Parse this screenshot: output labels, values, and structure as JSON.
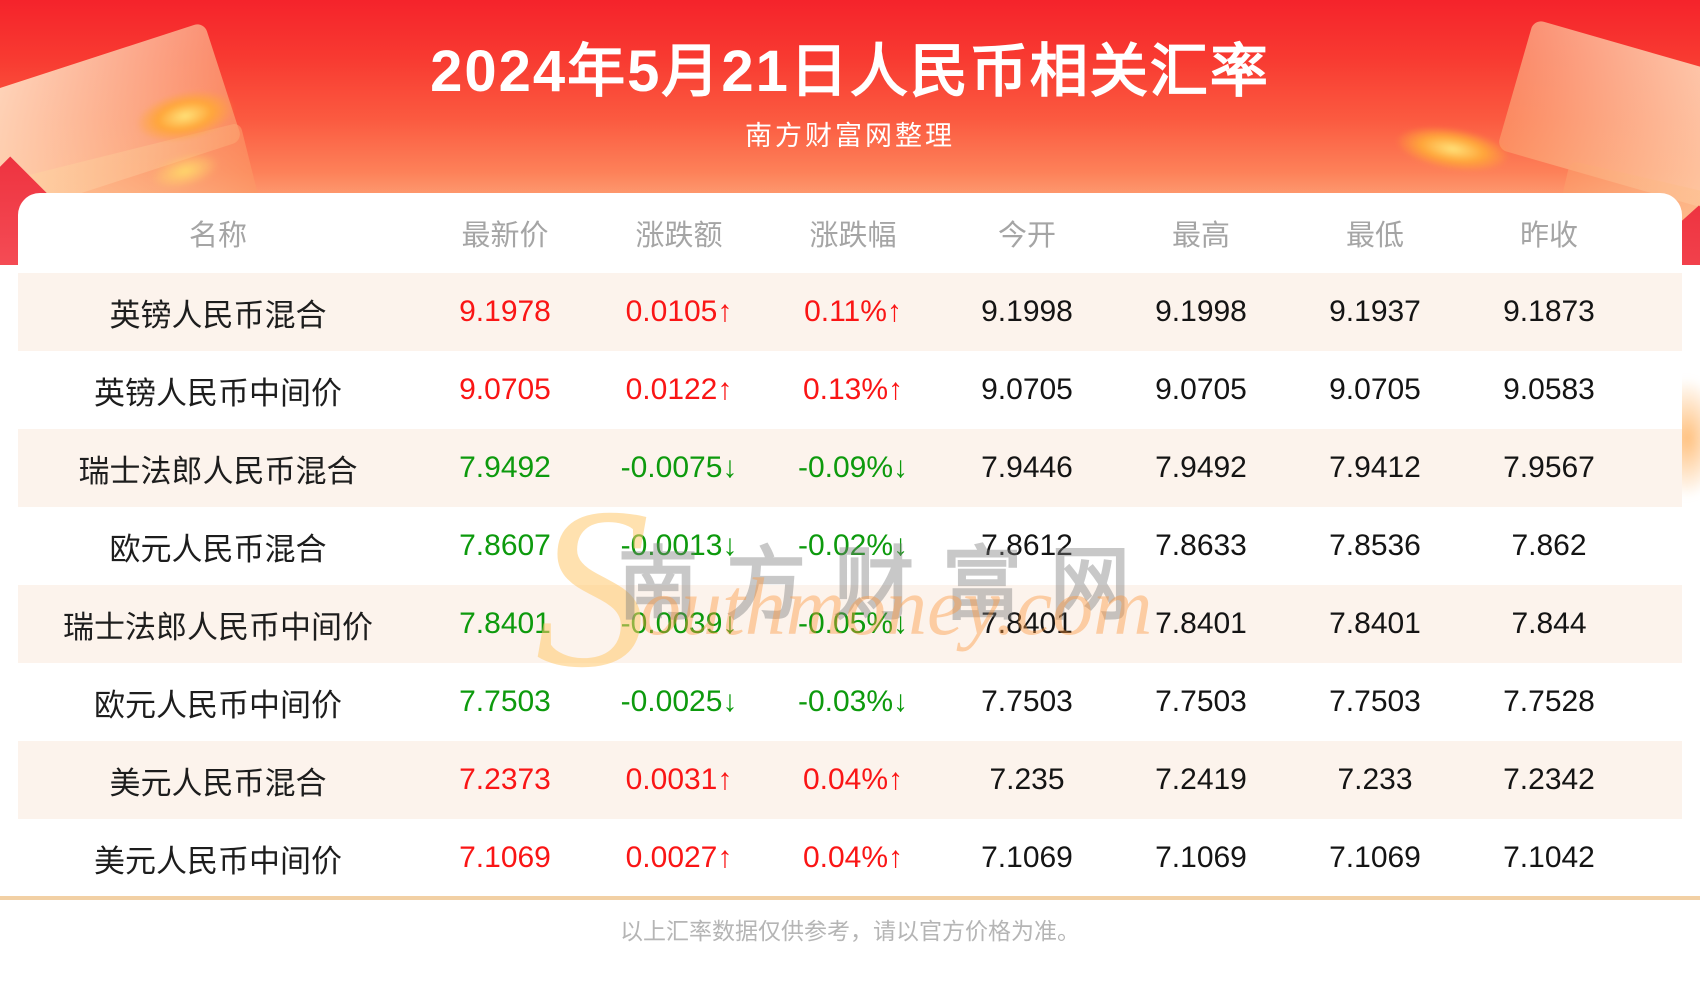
{
  "banner": {
    "title": "2024年5月21日人民币相关汇率",
    "subtitle": "南方财富网整理"
  },
  "table": {
    "columns": [
      "名称",
      "最新价",
      "涨跌额",
      "涨跌幅",
      "今开",
      "最高",
      "最低",
      "昨收"
    ],
    "rows": [
      {
        "name": "英镑人民币混合",
        "latest": "9.1978",
        "change": "0.0105↑",
        "change_pct": "0.11%↑",
        "open": "9.1998",
        "high": "9.1998",
        "low": "9.1937",
        "prev_close": "9.1873",
        "trend": "up"
      },
      {
        "name": "英镑人民币中间价",
        "latest": "9.0705",
        "change": "0.0122↑",
        "change_pct": "0.13%↑",
        "open": "9.0705",
        "high": "9.0705",
        "low": "9.0705",
        "prev_close": "9.0583",
        "trend": "up"
      },
      {
        "name": "瑞士法郎人民币混合",
        "latest": "7.9492",
        "change": "-0.0075↓",
        "change_pct": "-0.09%↓",
        "open": "7.9446",
        "high": "7.9492",
        "low": "7.9412",
        "prev_close": "7.9567",
        "trend": "down"
      },
      {
        "name": "欧元人民币混合",
        "latest": "7.8607",
        "change": "-0.0013↓",
        "change_pct": "-0.02%↓",
        "open": "7.8612",
        "high": "7.8633",
        "low": "7.8536",
        "prev_close": "7.862",
        "trend": "down"
      },
      {
        "name": "瑞士法郎人民币中间价",
        "latest": "7.8401",
        "change": "-0.0039↓",
        "change_pct": "-0.05%↓",
        "open": "7.8401",
        "high": "7.8401",
        "low": "7.8401",
        "prev_close": "7.844",
        "trend": "down"
      },
      {
        "name": "欧元人民币中间价",
        "latest": "7.7503",
        "change": "-0.0025↓",
        "change_pct": "-0.03%↓",
        "open": "7.7503",
        "high": "7.7503",
        "low": "7.7503",
        "prev_close": "7.7528",
        "trend": "down"
      },
      {
        "name": "美元人民币混合",
        "latest": "7.2373",
        "change": "0.0031↑",
        "change_pct": "0.04%↑",
        "open": "7.235",
        "high": "7.2419",
        "low": "7.233",
        "prev_close": "7.2342",
        "trend": "up"
      },
      {
        "name": "美元人民币中间价",
        "latest": "7.1069",
        "change": "0.0027↑",
        "change_pct": "0.04%↑",
        "open": "7.1069",
        "high": "7.1069",
        "low": "7.1069",
        "prev_close": "7.1042",
        "trend": "up"
      }
    ]
  },
  "watermark": {
    "en_initial": "S",
    "cn": "南方财富网",
    "en_rest": "outhmoney.com"
  },
  "footer": {
    "disclaimer": "以上汇率数据仅供参考，请以官方价格为准。"
  },
  "colors": {
    "up": "#fa1515",
    "down": "#0d9a0d",
    "banner_red": "#f5232b",
    "row_alt": "#fcf3ec",
    "divider": "#f2d0a4",
    "header_text": "#a5a5a5"
  },
  "chart_data": {
    "type": "table",
    "title": "2024年5月21日人民币相关汇率",
    "source": "南方财富网整理",
    "columns": [
      "名称",
      "最新价",
      "涨跌额",
      "涨跌幅",
      "今开",
      "最高",
      "最低",
      "昨收"
    ],
    "rows": [
      [
        "英镑人民币混合",
        9.1978,
        0.0105,
        "0.11%",
        9.1998,
        9.1998,
        9.1937,
        9.1873
      ],
      [
        "英镑人民币中间价",
        9.0705,
        0.0122,
        "0.13%",
        9.0705,
        9.0705,
        9.0705,
        9.0583
      ],
      [
        "瑞士法郎人民币混合",
        7.9492,
        -0.0075,
        "-0.09%",
        7.9446,
        7.9492,
        7.9412,
        7.9567
      ],
      [
        "欧元人民币混合",
        7.8607,
        -0.0013,
        "-0.02%",
        7.8612,
        7.8633,
        7.8536,
        7.862
      ],
      [
        "瑞士法郎人民币中间价",
        7.8401,
        -0.0039,
        "-0.05%",
        7.8401,
        7.8401,
        7.8401,
        7.844
      ],
      [
        "欧元人民币中间价",
        7.7503,
        -0.0025,
        "-0.03%",
        7.7503,
        7.7503,
        7.7503,
        7.7528
      ],
      [
        "美元人民币混合",
        7.2373,
        0.0031,
        "0.04%",
        7.235,
        7.2419,
        7.233,
        7.2342
      ],
      [
        "美元人民币中间价",
        7.1069,
        0.0027,
        "0.04%",
        7.1069,
        7.1069,
        7.1069,
        7.1042
      ]
    ]
  }
}
